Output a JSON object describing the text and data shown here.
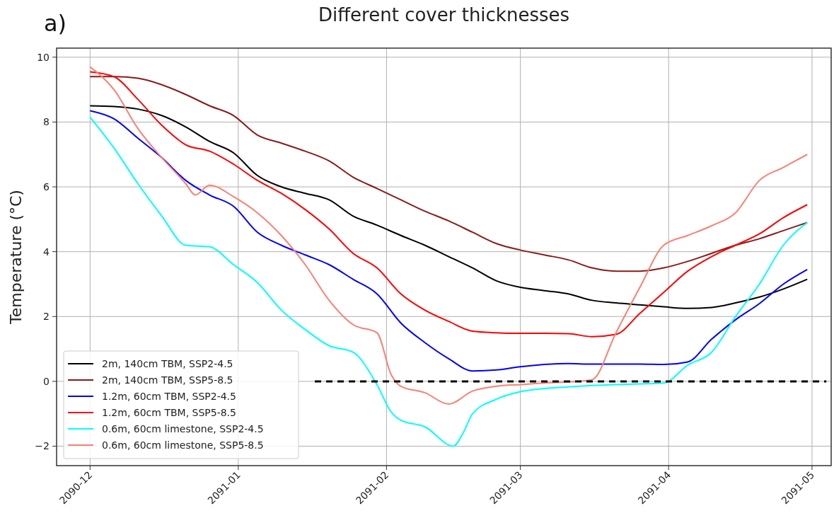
{
  "chart_data": {
    "type": "line",
    "title": "Different cover thicknesses",
    "ylabel": "Temperature (°C)",
    "annotations": [
      "a)"
    ],
    "x": [
      "2090-12-01",
      "2090-12-06",
      "2090-12-11",
      "2090-12-16",
      "2090-12-21",
      "2090-12-26",
      "2090-12-31",
      "2091-01-05",
      "2091-01-10",
      "2091-01-15",
      "2091-01-20",
      "2091-01-25",
      "2091-01-30",
      "2091-02-04",
      "2091-02-09",
      "2091-02-14",
      "2091-02-19",
      "2091-02-24",
      "2091-03-01",
      "2091-03-06",
      "2091-03-11",
      "2091-03-16",
      "2091-03-21",
      "2091-03-26",
      "2091-03-31",
      "2091-04-05",
      "2091-04-10",
      "2091-04-15",
      "2091-04-20",
      "2091-04-25",
      "2091-04-30"
    ],
    "series": [
      {
        "name": "2m, 140cm TBM, SSP2-4.5",
        "color": "#000000",
        "values": [
          8.5,
          8.48,
          8.4,
          8.2,
          7.85,
          7.4,
          7.05,
          6.35,
          6.0,
          5.8,
          5.6,
          5.1,
          4.82,
          4.5,
          4.2,
          3.85,
          3.5,
          3.1,
          2.9,
          2.8,
          2.7,
          2.5,
          2.42,
          2.36,
          2.3,
          2.25,
          2.28,
          2.42,
          2.6,
          2.85,
          3.15
        ]
      },
      {
        "name": "2m, 140cm TBM, SSP5-8.5",
        "color": "#8b1a1a",
        "values": [
          9.4,
          9.4,
          9.35,
          9.15,
          8.85,
          8.5,
          8.2,
          7.6,
          7.35,
          7.1,
          6.8,
          6.3,
          5.95,
          5.6,
          5.25,
          4.95,
          4.6,
          4.25,
          4.05,
          3.9,
          3.75,
          3.5,
          3.4,
          3.4,
          3.5,
          3.7,
          3.95,
          4.2,
          4.4,
          4.65,
          4.9
        ]
      },
      {
        "name": "1.2m, 60cm TBM, SSP2-4.5",
        "color": "#0000ff",
        "values": [
          8.35,
          8.1,
          7.5,
          6.9,
          6.2,
          5.75,
          5.4,
          4.6,
          4.2,
          3.9,
          3.6,
          3.15,
          2.7,
          1.8,
          1.2,
          0.7,
          0.32,
          0.35,
          0.45,
          0.52,
          0.55,
          0.53,
          0.53,
          0.53,
          0.52,
          0.6,
          1.3,
          1.9,
          2.4,
          3.0,
          3.45
        ]
      },
      {
        "name": "1.2m, 60cm TBM, SSP5-8.5",
        "color": "#ff0000",
        "values": [
          9.55,
          9.4,
          8.7,
          7.9,
          7.3,
          7.1,
          6.7,
          6.2,
          5.8,
          5.3,
          4.7,
          3.95,
          3.5,
          2.7,
          2.2,
          1.85,
          1.55,
          1.5,
          1.48,
          1.48,
          1.47,
          1.38,
          1.45,
          2.1,
          2.75,
          3.4,
          3.85,
          4.2,
          4.55,
          5.05,
          5.45
        ]
      },
      {
        "name": "0.6m, 60cm limestone, SSP2-4.5",
        "color": "#00ffff",
        "x": [
          "2090-12-01",
          "2090-12-06",
          "2090-12-11",
          "2090-12-16",
          "2090-12-21",
          "2090-12-26",
          "2090-12-31",
          "2091-01-05",
          "2091-01-10",
          "2091-01-15",
          "2091-01-20",
          "2091-01-25",
          "2091-01-30",
          "2091-02-02",
          "2091-02-04",
          "2091-02-09",
          "2091-02-15",
          "2091-02-17",
          "2091-02-19",
          "2091-02-24",
          "2091-03-01",
          "2091-03-06",
          "2091-03-11",
          "2091-03-16",
          "2091-03-21",
          "2091-03-26",
          "2091-03-31",
          "2091-04-05",
          "2091-04-10",
          "2091-04-15",
          "2091-04-20",
          "2091-04-25",
          "2091-04-30"
        ],
        "values": [
          8.15,
          7.2,
          6.1,
          5.1,
          4.2,
          4.15,
          3.6,
          3.05,
          2.2,
          1.6,
          1.1,
          0.9,
          -0.1,
          -0.95,
          -1.2,
          -1.4,
          -2.0,
          -1.6,
          -1.0,
          -0.55,
          -0.32,
          -0.22,
          -0.17,
          -0.13,
          -0.1,
          -0.08,
          -0.05,
          0.5,
          0.9,
          2.0,
          3.0,
          4.2,
          4.9
        ]
      },
      {
        "name": "0.6m, 60cm limestone, SSP5-8.5",
        "color": "#fa8072",
        "x": [
          "2090-12-01",
          "2090-12-06",
          "2090-12-11",
          "2090-12-16",
          "2090-12-21",
          "2090-12-23",
          "2090-12-26",
          "2090-12-31",
          "2091-01-05",
          "2091-01-10",
          "2091-01-15",
          "2091-01-20",
          "2091-01-25",
          "2091-01-30",
          "2091-02-02",
          "2091-02-04",
          "2091-02-09",
          "2091-02-14",
          "2091-02-19",
          "2091-02-24",
          "2091-03-01",
          "2091-03-06",
          "2091-03-11",
          "2091-03-16",
          "2091-03-21",
          "2091-03-26",
          "2091-03-31",
          "2091-04-05",
          "2091-04-10",
          "2091-04-15",
          "2091-04-20",
          "2091-04-25",
          "2091-04-30"
        ],
        "values": [
          9.7,
          9.0,
          7.8,
          6.9,
          6.1,
          5.75,
          6.05,
          5.7,
          5.2,
          4.5,
          3.6,
          2.5,
          1.75,
          1.5,
          0.2,
          -0.15,
          -0.35,
          -0.7,
          -0.3,
          -0.15,
          -0.1,
          -0.05,
          -0.02,
          0.05,
          1.5,
          2.9,
          4.2,
          4.5,
          4.8,
          5.2,
          6.2,
          6.6,
          7.0
        ]
      },
      {
        "color": "#000000",
        "line_style": "dashed",
        "x": [
          "2091-01-17",
          "2091-05-04"
        ],
        "values": [
          0,
          0
        ]
      }
    ],
    "xlim": [
      "2090-11-24",
      "2091-05-05"
    ],
    "xticks": [
      {
        "value": "2090-12",
        "label": "2090-12"
      },
      {
        "value": "2091-01",
        "label": "2091-01"
      },
      {
        "value": "2091-02",
        "label": "2091-02"
      },
      {
        "value": "2091-03",
        "label": "2091-03"
      },
      {
        "value": "2091-04",
        "label": "2091-04"
      },
      {
        "value": "2091-05",
        "label": "2091-05"
      }
    ],
    "ylim": [
      -2.6,
      10.28
    ],
    "yticks": [
      {
        "value": -2,
        "label": "−2"
      },
      0,
      2,
      4,
      6,
      8,
      10
    ],
    "grid": true,
    "legend": "bottom left",
    "line_style": "solid"
  }
}
